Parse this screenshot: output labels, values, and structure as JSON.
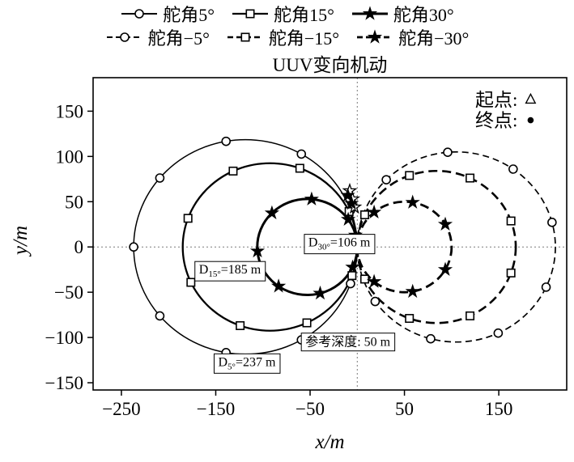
{
  "chart_data": {
    "type": "line",
    "title": "UUV变向机动",
    "xlabel": "x/m",
    "ylabel": "y/m",
    "xlim": [
      -280,
      222
    ],
    "ylim": [
      -158,
      187
    ],
    "xticks": [
      -250,
      -150,
      -50,
      50,
      150
    ],
    "yticks": [
      -150,
      -100,
      -50,
      0,
      50,
      100,
      150
    ],
    "grid_crosshair": {
      "x": 0,
      "y": 0
    },
    "legend_position": "top",
    "series": [
      {
        "name": "舵角5°",
        "line": "solid",
        "marker": "circle-open",
        "width": 1.5,
        "center": [
          -118.5,
          0
        ],
        "diameter": 237,
        "marker_angles_deg": [
          20,
          60,
          100,
          140,
          180,
          220,
          260,
          300,
          340
        ]
      },
      {
        "name": "舵角15°",
        "line": "solid",
        "marker": "square-open",
        "width": 2.3,
        "center": [
          -92.5,
          0
        ],
        "diameter": 185,
        "marker_angles_deg": [
          25,
          70,
          115,
          160,
          205,
          250,
          295,
          340
        ]
      },
      {
        "name": "舵角30°",
        "line": "solid",
        "marker": "star",
        "width": 3.0,
        "center": [
          -53,
          0
        ],
        "diameter": 106,
        "marker_angles_deg": [
          35,
          85,
          135,
          185,
          235,
          285,
          335
        ]
      },
      {
        "name": "舵角−5°",
        "line": "dashed",
        "marker": "circle-open",
        "width": 1.7,
        "center": [
          105,
          0
        ],
        "diameter": 210,
        "marker_angles_deg": [
          15,
          55,
          95,
          135,
          215,
          255,
          295,
          335
        ]
      },
      {
        "name": "舵角−15°",
        "line": "dashed",
        "marker": "square-open",
        "width": 2.6,
        "center": [
          84,
          0
        ],
        "diameter": 168,
        "marker_angles_deg": [
          20,
          65,
          110,
          155,
          205,
          250,
          295,
          340
        ]
      },
      {
        "name": "舵角−30°",
        "line": "dashed",
        "marker": "star",
        "width": 2.8,
        "center": [
          50,
          0
        ],
        "diameter": 100,
        "marker_angles_deg": [
          30,
          80,
          130,
          230,
          280,
          330
        ]
      }
    ],
    "annotations": [
      {
        "name": "d30",
        "main": "D",
        "sub": "30°",
        "rest": "=106 m",
        "x": -19,
        "y": 5
      },
      {
        "name": "d15",
        "main": "D",
        "sub": "15°",
        "rest": "=185 m",
        "x": -135,
        "y": -25
      },
      {
        "name": "d5",
        "main": "D",
        "sub": "5°",
        "rest": "=237 m",
        "x": -117,
        "y": -127
      },
      {
        "name": "depth",
        "main": "参考深度: 50 m",
        "sub": "",
        "rest": "",
        "x": -10,
        "y": -105
      }
    ],
    "point_legend": [
      {
        "label": "起点:",
        "marker": "triangle-open",
        "x": 170,
        "y": 163
      },
      {
        "label": "终点:",
        "marker": "dot",
        "x": 170,
        "y": 140
      }
    ],
    "extra_markers": [
      {
        "marker": "star-open",
        "x": -8,
        "y": 62
      },
      {
        "marker": "star-open",
        "x": -5,
        "y": 53
      },
      {
        "marker": "star-open",
        "x": -3,
        "y": 44
      },
      {
        "marker": "star",
        "x": -10,
        "y": 57
      },
      {
        "marker": "star",
        "x": -6,
        "y": 48
      },
      {
        "marker": "star",
        "x": -2,
        "y": 13
      },
      {
        "marker": "star",
        "x": 1,
        "y": 6
      },
      {
        "marker": "triangle-open",
        "x": -2,
        "y": 3
      },
      {
        "marker": "dot",
        "x": 1,
        "y": 1
      }
    ]
  }
}
